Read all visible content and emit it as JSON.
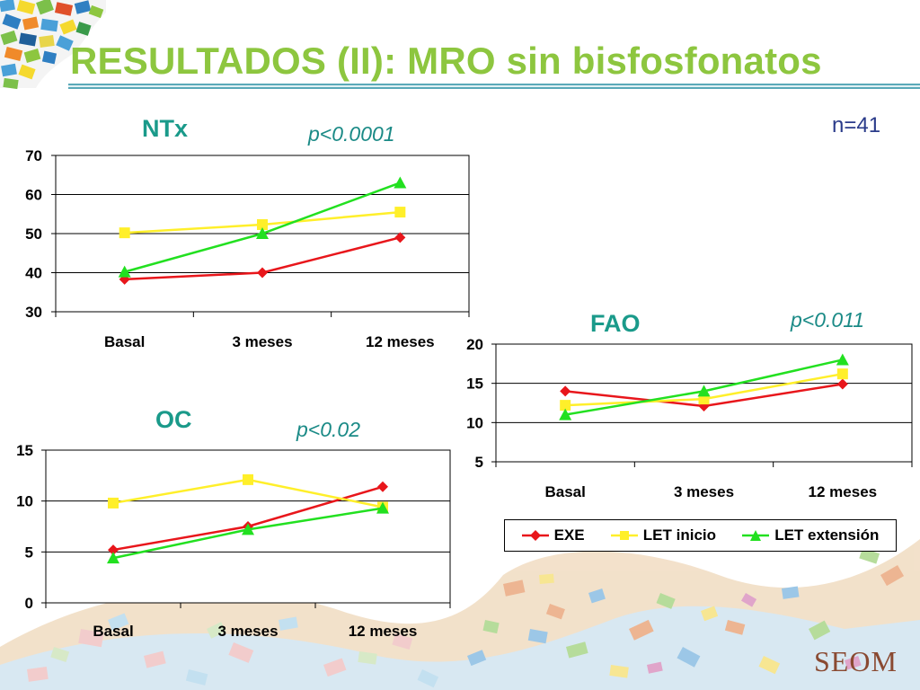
{
  "slide": {
    "title": "RESULTADOS (II): MRO sin bisfosfonatos",
    "n_label": "n=41",
    "logo_text": "SEOM"
  },
  "colors": {
    "title": "#8dc63f",
    "chart_title": "#1a9a8a",
    "pvalue": "#1a8a86",
    "n_label": "#2a3b8a",
    "EXE": "#e8161b",
    "LET inicio": "#ffef2a",
    "LET extensión": "#22e020"
  },
  "legend": [
    {
      "name": "EXE",
      "marker": "diamond"
    },
    {
      "name": "LET inicio",
      "marker": "square"
    },
    {
      "name": "LET extensión",
      "marker": "triangle"
    }
  ],
  "chart_data": [
    {
      "type": "line",
      "title": "NTx",
      "annotation": "p<0.0001",
      "categories": [
        "Basal",
        "3 meses",
        "12 meses"
      ],
      "ylim": [
        30,
        70
      ],
      "yticks": [
        30,
        40,
        50,
        60,
        70
      ],
      "grid": true,
      "series": [
        {
          "name": "EXE",
          "values": [
            38.3,
            40,
            49
          ]
        },
        {
          "name": "LET inicio",
          "values": [
            50.2,
            52.3,
            55.5
          ]
        },
        {
          "name": "LET extensión",
          "values": [
            40.2,
            50,
            63
          ]
        }
      ]
    },
    {
      "type": "line",
      "title": "FAO",
      "annotation": "p<0.011",
      "categories": [
        "Basal",
        "3 meses",
        "12 meses"
      ],
      "ylim": [
        5,
        20
      ],
      "yticks": [
        5,
        10,
        15,
        20
      ],
      "grid": true,
      "legend": "bottom",
      "series": [
        {
          "name": "EXE",
          "values": [
            14,
            12.1,
            14.9
          ]
        },
        {
          "name": "LET inicio",
          "values": [
            12.2,
            13,
            16.2
          ]
        },
        {
          "name": "LET extensión",
          "values": [
            11,
            14,
            18
          ]
        }
      ]
    },
    {
      "type": "line",
      "title": "OC",
      "annotation": "p<0.02",
      "categories": [
        "Basal",
        "3 meses",
        "12 meses"
      ],
      "ylim": [
        0,
        15
      ],
      "yticks": [
        0,
        5,
        10,
        15
      ],
      "grid": true,
      "series": [
        {
          "name": "EXE",
          "values": [
            5.2,
            7.5,
            11.4
          ]
        },
        {
          "name": "LET inicio",
          "values": [
            9.8,
            12.1,
            9.4
          ]
        },
        {
          "name": "LET extensión",
          "values": [
            4.4,
            7.2,
            9.3
          ]
        }
      ]
    }
  ]
}
